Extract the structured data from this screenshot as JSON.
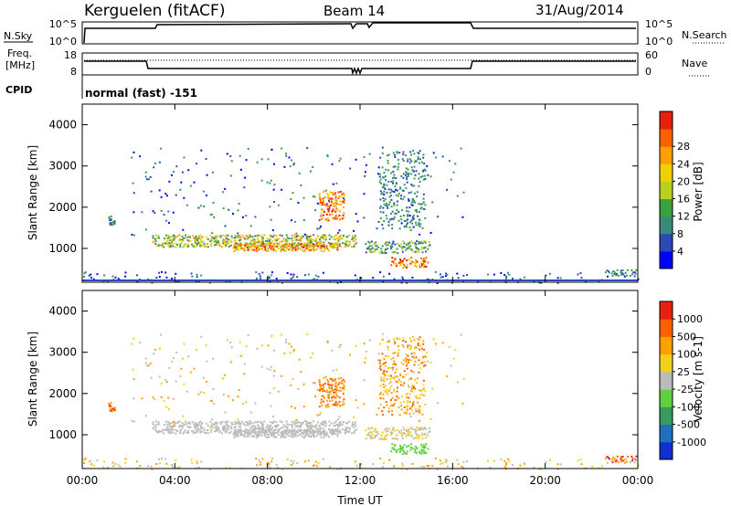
{
  "header": {
    "station": "Kerguelen (fitACF)",
    "beam": "Beam 14",
    "date": "31/Aug/2014"
  },
  "labels": {
    "nsky": "N.Sky",
    "nsearch": "N.Search",
    "freq_line1": "Freq.",
    "freq_line2": "[MHz]",
    "nave": "Nave",
    "cpid": "CPID",
    "cpid_value": "normal (fast) -151"
  },
  "x_axis": {
    "label": "Time UT",
    "ticks": [
      "00:00",
      "04:00",
      "08:00",
      "12:00",
      "16:00",
      "20:00",
      "00:00"
    ]
  },
  "noise_panel": {
    "left_ticks": [
      "10^5",
      "10^0"
    ],
    "right_ticks": [
      "10^5",
      "10^0"
    ]
  },
  "freq_panel": {
    "left_ticks": [
      "18",
      "8"
    ],
    "right_ticks": [
      "60",
      "0"
    ]
  },
  "chart_data": [
    {
      "type": "heatmap",
      "title": "",
      "xlabel": "Time UT",
      "ylabel": "Slant Range [km]",
      "xlim": [
        "00:00",
        "24:00"
      ],
      "ylim": [
        180,
        4500
      ],
      "y_ticks": [
        "1000",
        "2000",
        "3000",
        "4000"
      ],
      "colorbar": {
        "label": "Power [dB]",
        "tick_labels": [
          "4",
          "8",
          "12",
          "16",
          "20",
          "24",
          "28"
        ],
        "range": [
          0,
          30
        ],
        "colors": [
          "#0000ff",
          "#2a4ab8",
          "#3a8a7a",
          "#3aa040",
          "#b8d020",
          "#f0d000",
          "#ffa000",
          "#ff6000",
          "#e82010"
        ]
      }
    },
    {
      "type": "heatmap",
      "title": "",
      "xlabel": "Time UT",
      "ylabel": "Slant Range [km]",
      "xlim": [
        "00:00",
        "24:00"
      ],
      "ylim": [
        180,
        4500
      ],
      "y_ticks": [
        "1000",
        "2000",
        "3000",
        "4000"
      ],
      "colorbar": {
        "label": "Velocity [m s-1]",
        "tick_labels": [
          "1000",
          "500",
          "100",
          "25",
          "-25",
          "-100",
          "-500",
          "-1000"
        ],
        "colors": [
          "#1030d0",
          "#2070c0",
          "#3a9a60",
          "#60d040",
          "#bbbbbb",
          "#f0d020",
          "#ffa000",
          "#ff6000",
          "#e82010"
        ]
      }
    }
  ]
}
